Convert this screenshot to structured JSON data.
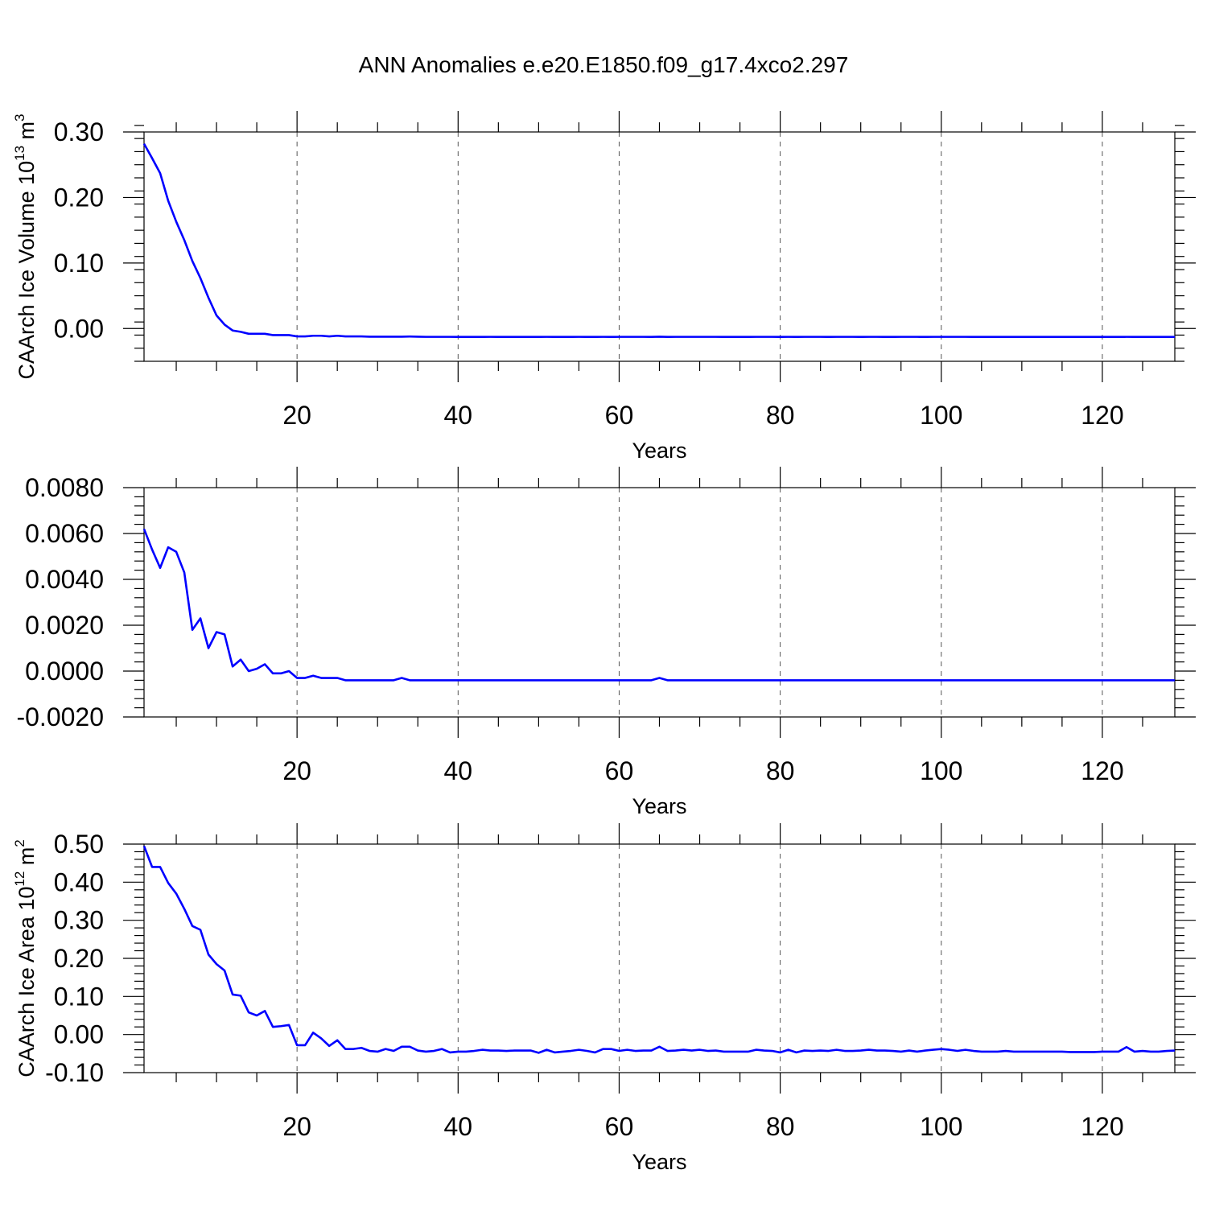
{
  "figure": {
    "title": "ANN Anomalies e.e20.E1850.f09_g17.4xco2.297",
    "line_color": "#0000ff"
  },
  "chart_data": [
    {
      "type": "line",
      "title": "",
      "xlabel": "Years",
      "ylabel_main": "CAArch Ice Volume 10",
      "ylabel_exp1": "13",
      "ylabel_mid": " m",
      "ylabel_exp2": "3",
      "xlim": [
        1,
        129
      ],
      "ylim": [
        -0.05,
        0.3
      ],
      "xticks": [
        20,
        40,
        60,
        80,
        100,
        120
      ],
      "xtick_labels": [
        "20",
        "40",
        "60",
        "80",
        "100",
        "120"
      ],
      "yticks": [
        0.0,
        0.1,
        0.2,
        0.3
      ],
      "ytick_labels": [
        "0.00",
        "0.10",
        "0.20",
        "0.30"
      ],
      "yminor_step": 0.02,
      "x_grid": true,
      "series": [
        {
          "x": [
            1,
            2,
            3,
            4,
            5,
            6,
            7,
            8,
            9,
            10,
            11,
            12,
            13,
            14,
            15,
            16,
            17,
            18,
            19,
            20,
            21,
            22,
            23,
            24,
            25,
            26,
            27,
            28,
            29,
            30,
            31,
            32,
            33,
            34,
            35,
            36,
            37,
            38,
            39,
            40,
            41,
            42,
            43,
            44,
            45,
            46,
            47,
            48,
            49,
            50,
            51,
            52,
            53,
            54,
            55,
            56,
            57,
            58,
            59,
            60,
            61,
            62,
            63,
            64,
            65,
            66,
            67,
            68,
            69,
            70,
            71,
            72,
            73,
            74,
            75,
            76,
            77,
            78,
            79,
            80,
            81,
            82,
            83,
            84,
            85,
            86,
            87,
            88,
            89,
            90,
            91,
            92,
            93,
            94,
            95,
            96,
            97,
            98,
            99,
            100,
            101,
            102,
            103,
            104,
            105,
            106,
            107,
            108,
            109,
            110,
            111,
            112,
            113,
            114,
            115,
            116,
            117,
            118,
            119,
            120,
            121,
            122,
            123,
            124,
            125,
            126,
            127,
            128,
            129
          ],
          "values": [
            0.282,
            0.26,
            0.237,
            0.195,
            0.163,
            0.135,
            0.103,
            0.077,
            0.047,
            0.02,
            0.006,
            -0.003,
            -0.005,
            -0.008,
            -0.008,
            -0.008,
            -0.01,
            -0.01,
            -0.01,
            -0.012,
            -0.012,
            -0.011,
            -0.011,
            -0.012,
            -0.011,
            -0.012,
            -0.012,
            -0.012,
            -0.0125,
            -0.0125,
            -0.0125,
            -0.0125,
            -0.0125,
            -0.0122,
            -0.0125,
            -0.0127,
            -0.0127,
            -0.0127,
            -0.0127,
            -0.0128,
            -0.0128,
            -0.0128,
            -0.0128,
            -0.0127,
            -0.0128,
            -0.0128,
            -0.0128,
            -0.0128,
            -0.0128,
            -0.0128,
            -0.0127,
            -0.0128,
            -0.0128,
            -0.0128,
            -0.0127,
            -0.0128,
            -0.0128,
            -0.0127,
            -0.0128,
            -0.0127,
            -0.0127,
            -0.0127,
            -0.0127,
            -0.0128,
            -0.0125,
            -0.0128,
            -0.0127,
            -0.0127,
            -0.0127,
            -0.0127,
            -0.0127,
            -0.0127,
            -0.0128,
            -0.0128,
            -0.0128,
            -0.0128,
            -0.0127,
            -0.0127,
            -0.0127,
            -0.0128,
            -0.0127,
            -0.0128,
            -0.0127,
            -0.0127,
            -0.0127,
            -0.0128,
            -0.0127,
            -0.0127,
            -0.0127,
            -0.0128,
            -0.0127,
            -0.0127,
            -0.0128,
            -0.0128,
            -0.0127,
            -0.0127,
            -0.0127,
            -0.0128,
            -0.0127,
            -0.0127,
            -0.0127,
            -0.0127,
            -0.0127,
            -0.0128,
            -0.0128,
            -0.0128,
            -0.0128,
            -0.0128,
            -0.0128,
            -0.0128,
            -0.0128,
            -0.0128,
            -0.0128,
            -0.0128,
            -0.0128,
            -0.0128,
            -0.0128,
            -0.0128,
            -0.0128,
            -0.0128,
            -0.0128,
            -0.0128,
            -0.0127,
            -0.0128,
            -0.0128,
            -0.0128,
            -0.0128,
            -0.0128,
            -0.0128
          ]
        }
      ]
    },
    {
      "type": "line",
      "title": "",
      "xlabel": "Years",
      "ylabel_main": "",
      "ylabel_exp1": "",
      "ylabel_mid": "",
      "ylabel_exp2": "",
      "xlim": [
        1,
        129
      ],
      "ylim": [
        -0.002,
        0.008
      ],
      "xticks": [
        20,
        40,
        60,
        80,
        100,
        120
      ],
      "xtick_labels": [
        "20",
        "40",
        "60",
        "80",
        "100",
        "120"
      ],
      "yticks": [
        -0.002,
        0.0,
        0.002,
        0.004,
        0.006,
        0.008
      ],
      "ytick_labels": [
        "-0.0020",
        "0.0000",
        "0.0020",
        "0.0040",
        "0.0060",
        "0.0080"
      ],
      "yminor_step": 0.0004,
      "x_grid": true,
      "series": [
        {
          "x": [
            1,
            2,
            3,
            4,
            5,
            6,
            7,
            8,
            9,
            10,
            11,
            12,
            13,
            14,
            15,
            16,
            17,
            18,
            19,
            20,
            21,
            22,
            23,
            24,
            25,
            26,
            27,
            28,
            29,
            30,
            31,
            32,
            33,
            34,
            35,
            36,
            37,
            38,
            39,
            40,
            41,
            42,
            43,
            44,
            45,
            46,
            47,
            48,
            49,
            50,
            51,
            52,
            53,
            54,
            55,
            56,
            57,
            58,
            59,
            60,
            61,
            62,
            63,
            64,
            65,
            66,
            67,
            68,
            69,
            70,
            71,
            72,
            73,
            74,
            75,
            76,
            77,
            78,
            79,
            80,
            81,
            82,
            83,
            84,
            85,
            86,
            87,
            88,
            89,
            90,
            91,
            92,
            93,
            94,
            95,
            96,
            97,
            98,
            99,
            100,
            101,
            102,
            103,
            104,
            105,
            106,
            107,
            108,
            109,
            110,
            111,
            112,
            113,
            114,
            115,
            116,
            117,
            118,
            119,
            120,
            121,
            122,
            123,
            124,
            125,
            126,
            127,
            128,
            129
          ],
          "values": [
            0.0062,
            0.0053,
            0.0045,
            0.0054,
            0.0052,
            0.0043,
            0.0018,
            0.0023,
            0.001,
            0.0017,
            0.0016,
            0.0002,
            0.0005,
            0.0,
            0.0001,
            0.0003,
            -0.0001,
            -0.0001,
            0.0,
            -0.0003,
            -0.0003,
            -0.0002,
            -0.0003,
            -0.0003,
            -0.0003,
            -0.0004,
            -0.0004,
            -0.0004,
            -0.0004,
            -0.0004,
            -0.0004,
            -0.0004,
            -0.0003,
            -0.0004,
            -0.0004,
            -0.0004,
            -0.0004,
            -0.0004,
            -0.0004,
            -0.0004,
            -0.0004,
            -0.0004,
            -0.0004,
            -0.0004,
            -0.0004,
            -0.0004,
            -0.0004,
            -0.0004,
            -0.0004,
            -0.0004,
            -0.0004,
            -0.0004,
            -0.0004,
            -0.0004,
            -0.0004,
            -0.0004,
            -0.0004,
            -0.0004,
            -0.0004,
            -0.0004,
            -0.0004,
            -0.0004,
            -0.0004,
            -0.0004,
            -0.0003,
            -0.0004,
            -0.0004,
            -0.0004,
            -0.0004,
            -0.0004,
            -0.0004,
            -0.0004,
            -0.0004,
            -0.0004,
            -0.0004,
            -0.0004,
            -0.0004,
            -0.0004,
            -0.0004,
            -0.0004,
            -0.0004,
            -0.0004,
            -0.0004,
            -0.0004,
            -0.0004,
            -0.0004,
            -0.0004,
            -0.0004,
            -0.0004,
            -0.0004,
            -0.0004,
            -0.0004,
            -0.0004,
            -0.0004,
            -0.0004,
            -0.0004,
            -0.0004,
            -0.0004,
            -0.0004,
            -0.0004,
            -0.0004,
            -0.0004,
            -0.0004,
            -0.0004,
            -0.0004,
            -0.0004,
            -0.0004,
            -0.0004,
            -0.0004,
            -0.0004,
            -0.0004,
            -0.0004,
            -0.0004,
            -0.0004,
            -0.0004,
            -0.0004,
            -0.0004,
            -0.0004,
            -0.0004,
            -0.0004,
            -0.0004,
            -0.0004,
            -0.0004,
            -0.0004,
            -0.0004,
            -0.0004,
            -0.0004,
            -0.0004,
            -0.0004
          ]
        }
      ]
    },
    {
      "type": "line",
      "title": "",
      "xlabel": "Years",
      "ylabel_main": "CAArch Ice Area 10",
      "ylabel_exp1": "12",
      "ylabel_mid": " m",
      "ylabel_exp2": "2",
      "xlim": [
        1,
        129
      ],
      "ylim": [
        -0.1,
        0.5
      ],
      "xticks": [
        20,
        40,
        60,
        80,
        100,
        120
      ],
      "xtick_labels": [
        "20",
        "40",
        "60",
        "80",
        "100",
        "120"
      ],
      "yticks": [
        -0.1,
        0.0,
        0.1,
        0.2,
        0.3,
        0.4,
        0.5
      ],
      "ytick_labels": [
        "-0.10",
        "0.00",
        "0.10",
        "0.20",
        "0.30",
        "0.40",
        "0.50"
      ],
      "yminor_step": 0.02,
      "x_grid": true,
      "series": [
        {
          "x": [
            1,
            2,
            3,
            4,
            5,
            6,
            7,
            8,
            9,
            10,
            11,
            12,
            13,
            14,
            15,
            16,
            17,
            18,
            19,
            20,
            21,
            22,
            23,
            24,
            25,
            26,
            27,
            28,
            29,
            30,
            31,
            32,
            33,
            34,
            35,
            36,
            37,
            38,
            39,
            40,
            41,
            42,
            43,
            44,
            45,
            46,
            47,
            48,
            49,
            50,
            51,
            52,
            53,
            54,
            55,
            56,
            57,
            58,
            59,
            60,
            61,
            62,
            63,
            64,
            65,
            66,
            67,
            68,
            69,
            70,
            71,
            72,
            73,
            74,
            75,
            76,
            77,
            78,
            79,
            80,
            81,
            82,
            83,
            84,
            85,
            86,
            87,
            88,
            89,
            90,
            91,
            92,
            93,
            94,
            95,
            96,
            97,
            98,
            99,
            100,
            101,
            102,
            103,
            104,
            105,
            106,
            107,
            108,
            109,
            110,
            111,
            112,
            113,
            114,
            115,
            116,
            117,
            118,
            119,
            120,
            121,
            122,
            123,
            124,
            125,
            126,
            127,
            128,
            129
          ],
          "values": [
            0.495,
            0.44,
            0.44,
            0.398,
            0.37,
            0.33,
            0.285,
            0.275,
            0.21,
            0.185,
            0.168,
            0.105,
            0.102,
            0.058,
            0.05,
            0.062,
            0.02,
            0.022,
            0.025,
            -0.028,
            -0.028,
            0.005,
            -0.01,
            -0.03,
            -0.015,
            -0.038,
            -0.038,
            -0.035,
            -0.043,
            -0.045,
            -0.038,
            -0.043,
            -0.032,
            -0.032,
            -0.042,
            -0.045,
            -0.043,
            -0.038,
            -0.047,
            -0.045,
            -0.045,
            -0.043,
            -0.04,
            -0.042,
            -0.042,
            -0.043,
            -0.042,
            -0.042,
            -0.042,
            -0.048,
            -0.04,
            -0.047,
            -0.045,
            -0.043,
            -0.04,
            -0.043,
            -0.047,
            -0.038,
            -0.038,
            -0.043,
            -0.04,
            -0.043,
            -0.042,
            -0.042,
            -0.032,
            -0.043,
            -0.042,
            -0.04,
            -0.042,
            -0.04,
            -0.043,
            -0.042,
            -0.045,
            -0.045,
            -0.045,
            -0.045,
            -0.04,
            -0.042,
            -0.043,
            -0.047,
            -0.04,
            -0.047,
            -0.042,
            -0.043,
            -0.042,
            -0.043,
            -0.04,
            -0.043,
            -0.043,
            -0.042,
            -0.04,
            -0.042,
            -0.042,
            -0.043,
            -0.045,
            -0.042,
            -0.045,
            -0.042,
            -0.04,
            -0.038,
            -0.04,
            -0.043,
            -0.04,
            -0.043,
            -0.045,
            -0.045,
            -0.045,
            -0.043,
            -0.045,
            -0.045,
            -0.045,
            -0.045,
            -0.045,
            -0.045,
            -0.045,
            -0.046,
            -0.046,
            -0.046,
            -0.046,
            -0.045,
            -0.045,
            -0.045,
            -0.033,
            -0.045,
            -0.043,
            -0.045,
            -0.045,
            -0.043,
            -0.042
          ]
        }
      ]
    }
  ]
}
